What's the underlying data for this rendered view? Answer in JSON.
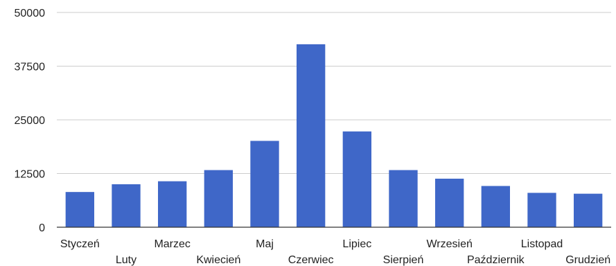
{
  "chart_data": {
    "type": "bar",
    "title": "",
    "xlabel": "",
    "ylabel": "",
    "ylim": [
      0,
      50000
    ],
    "yticks": [
      0,
      12500,
      25000,
      37500,
      50000
    ],
    "grid": true,
    "legend": "none",
    "bar_color": "#3f67c8",
    "categories": [
      "Styczeń",
      "Luty",
      "Marzec",
      "Kwiecień",
      "Maj",
      "Czerwiec",
      "Lipiec",
      "Sierpień",
      "Wrzesień",
      "Październik",
      "Listopad",
      "Grudzień"
    ],
    "values": [
      8200,
      10000,
      10700,
      13300,
      20100,
      42600,
      22300,
      13300,
      11300,
      9600,
      8000,
      7800
    ]
  }
}
